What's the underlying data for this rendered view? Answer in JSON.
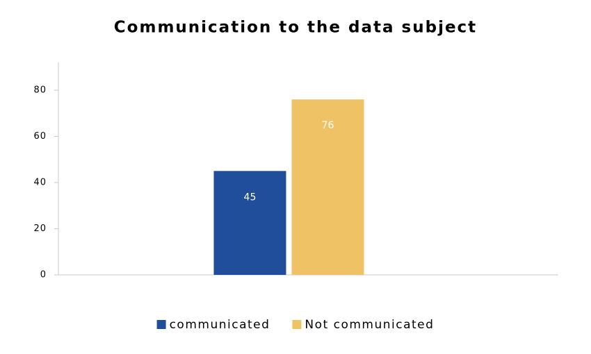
{
  "chart_data": {
    "type": "bar",
    "title": "Communication to the data subject",
    "categories": [
      null
    ],
    "series": [
      {
        "name": "communicated",
        "color": "#214e9a",
        "values": [
          45
        ]
      },
      {
        "name": "Not communicated",
        "color": "#f0c266",
        "values": [
          76
        ]
      }
    ],
    "ylim": [
      0,
      92
    ],
    "yticks": [
      0,
      20,
      40,
      60,
      80
    ],
    "grid": false,
    "legend": "bottom"
  }
}
